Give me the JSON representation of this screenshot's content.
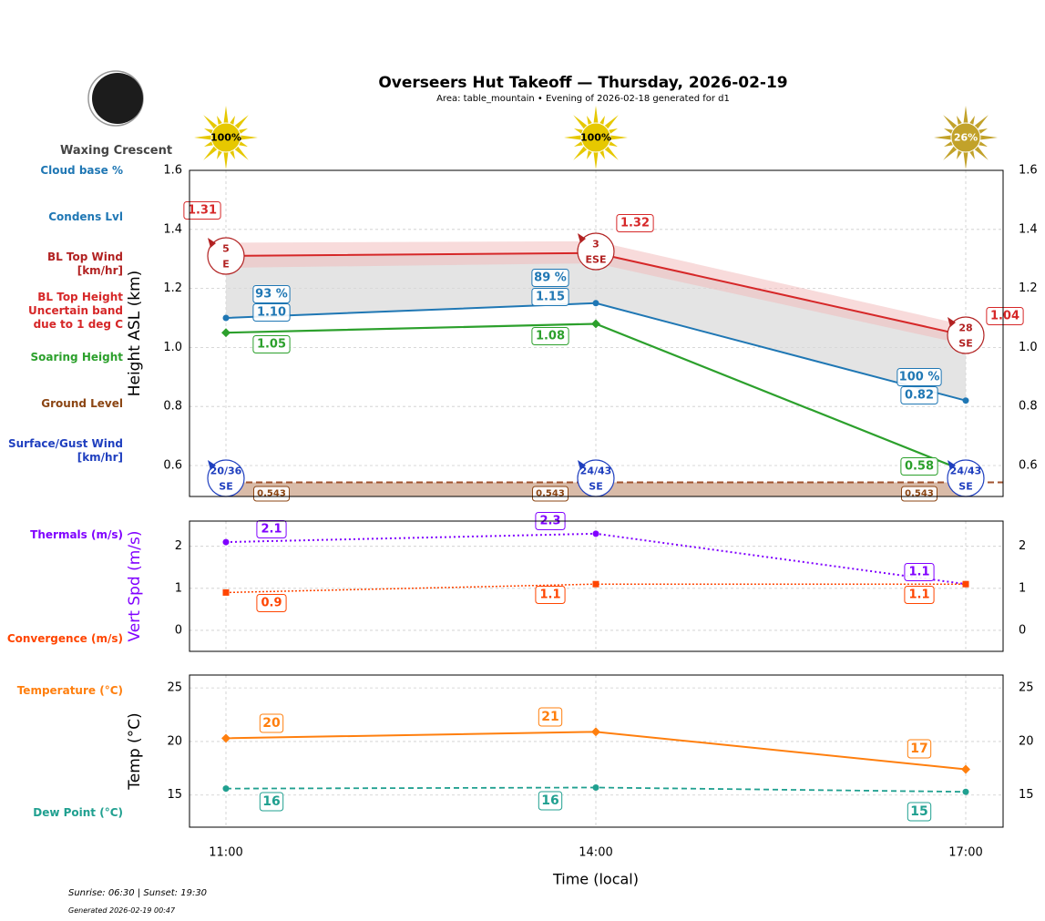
{
  "header": {
    "title": "Overseers Hut Takeoff — Thursday, 2026-02-19",
    "subtitle": "Area: table_mountain • Evening of 2026-02-18 generated for d1"
  },
  "moon": {
    "phase": "Waxing Crescent"
  },
  "footer": {
    "sun_times": "Sunrise: 06:30 | Sunset: 19:30",
    "generated": "Generated 2026-02-19 00:47"
  },
  "left_labels": {
    "cloud_base": "Cloud base %",
    "condens": "Condens Lvl",
    "bl_wind": "BL Top Wind\n[km/hr]",
    "bl_height": "BL Top Height\nUncertain band\ndue to 1 deg C",
    "soaring": "Soaring Height",
    "ground": "Ground Level",
    "surface_wind": "Surface/Gust Wind\n[km/hr]",
    "thermals": "Thermals (m/s)",
    "convergence": "Convergence (m/s)",
    "temperature": "Temperature (°C)",
    "dew_point": "Dew Point (°C)"
  },
  "colors": {
    "bl_top": "#d62728",
    "condens": "#1f77b4",
    "soaring": "#2ca02c",
    "ground": "#8b4513",
    "wind_surface": "#1f3fbf",
    "thermals": "#8000ff",
    "convergence": "#ff4500",
    "temperature": "#ff7f0e",
    "dew_point": "#20a090",
    "sun_full": "#e6c800",
    "sun_partial": "#c2a22a"
  },
  "chart_data": [
    {
      "type": "line",
      "ylabel": "Height ASL (km)",
      "xlabel": "Time (local)",
      "ylim": [
        0.495,
        1.6
      ],
      "yticks": [
        "0.6",
        "0.8",
        "1.0",
        "1.2",
        "1.4",
        "1.6"
      ],
      "grid": true,
      "categories": [
        "11:00",
        "14:00",
        "17:00"
      ],
      "sun": [
        "100%",
        "100%",
        "26%"
      ],
      "series": [
        {
          "key": "bl_top",
          "values": [
            1.31,
            1.32,
            1.04
          ],
          "labels": [
            "1.31",
            "1.32",
            "1.04"
          ],
          "band_upper": [
            1.355,
            1.36,
            1.075
          ],
          "band_lower": [
            1.27,
            1.285,
            1.01
          ]
        },
        {
          "key": "condens",
          "values": [
            1.1,
            1.15,
            0.82
          ],
          "labels": [
            "1.10",
            "1.15",
            "0.82"
          ],
          "cloud_base_pct": [
            "93 %",
            "89 %",
            "100 %"
          ]
        },
        {
          "key": "soaring",
          "values": [
            1.05,
            1.08,
            0.58
          ],
          "labels": [
            "1.05",
            "1.08",
            "0.58"
          ]
        },
        {
          "key": "ground",
          "values": [
            0.543,
            0.543,
            0.543
          ],
          "labels": [
            "0.543",
            "0.543",
            "0.543"
          ]
        }
      ],
      "bl_wind": [
        {
          "speed": "5",
          "dir": "E"
        },
        {
          "speed": "3",
          "dir": "ESE"
        },
        {
          "speed": "28",
          "dir": "SE"
        }
      ],
      "surface_wind": [
        {
          "speed": "20/36",
          "dir": "SE"
        },
        {
          "speed": "24/43",
          "dir": "SE"
        },
        {
          "speed": "24/43",
          "dir": "SE"
        }
      ]
    },
    {
      "type": "line",
      "ylabel": "Vert Spd (m/s)",
      "ylim": [
        -0.5,
        2.6
      ],
      "yticks": [
        "0",
        "1",
        "2"
      ],
      "grid": true,
      "categories": [
        "11:00",
        "14:00",
        "17:00"
      ],
      "series": [
        {
          "key": "thermals",
          "values": [
            2.1,
            2.3,
            1.1
          ],
          "labels": [
            "2.1",
            "2.3",
            "1.1"
          ]
        },
        {
          "key": "convergence",
          "values": [
            0.9,
            1.1,
            1.1
          ],
          "labels": [
            "0.9",
            "1.1",
            "1.1"
          ]
        }
      ]
    },
    {
      "type": "line",
      "ylabel": "Temp (°C)",
      "xlabel": "Time (local)",
      "ylim": [
        12,
        26.2
      ],
      "yticks": [
        "15",
        "20",
        "25"
      ],
      "grid": true,
      "categories": [
        "11:00",
        "14:00",
        "17:00"
      ],
      "series": [
        {
          "key": "temperature",
          "values": [
            20.3,
            20.9,
            17.4
          ],
          "labels": [
            "20",
            "21",
            "17"
          ]
        },
        {
          "key": "dew_point",
          "values": [
            15.6,
            15.7,
            15.3
          ],
          "labels": [
            "16",
            "16",
            "15"
          ]
        }
      ]
    }
  ]
}
